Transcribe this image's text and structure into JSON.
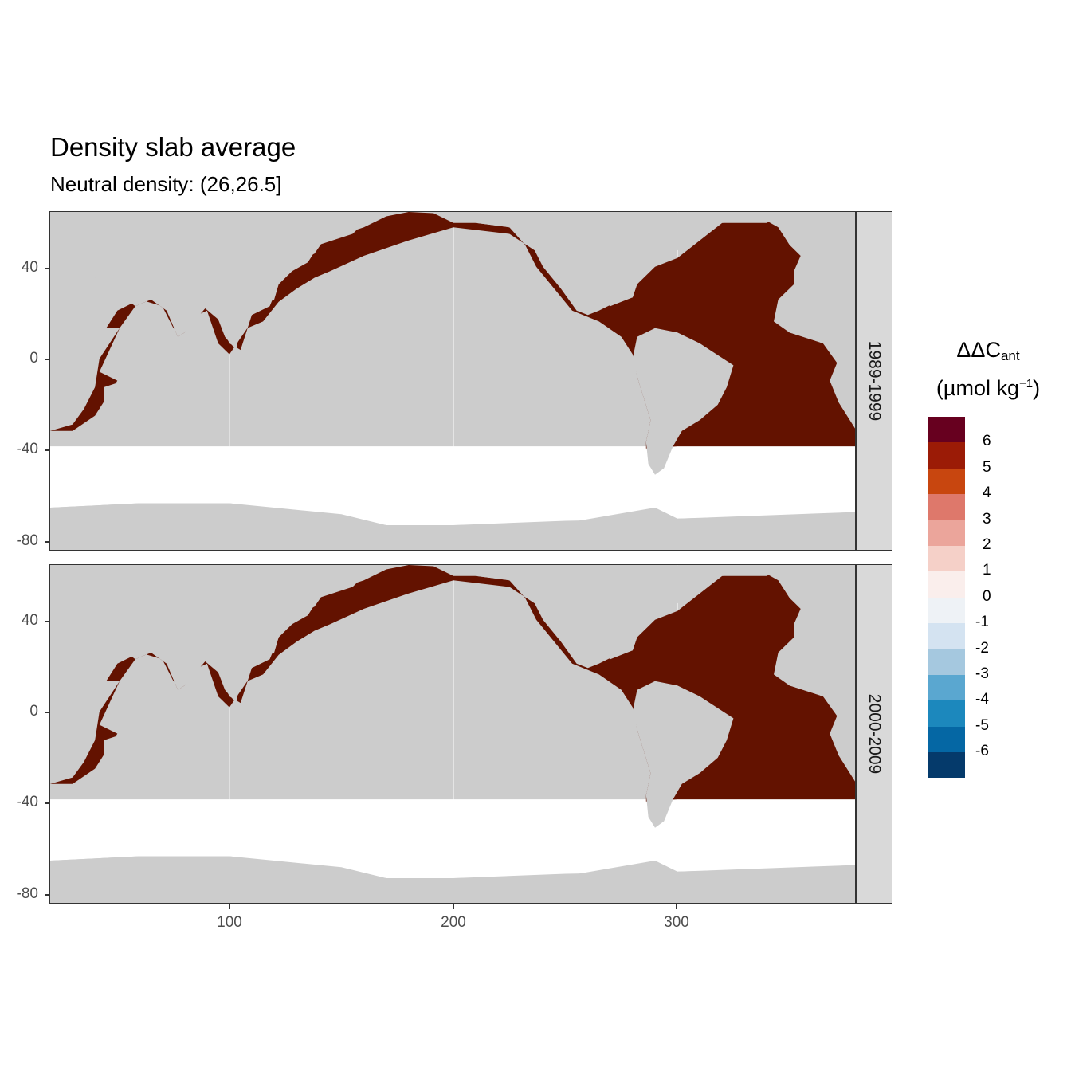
{
  "title": "Density slab average",
  "subtitle": "Neutral density: (26,26.5]",
  "panels": [
    {
      "label": "1989-1999"
    },
    {
      "label": "2000-2009"
    }
  ],
  "axes": {
    "y_ticks": [
      "40",
      "0",
      "-40",
      "-80"
    ],
    "x_ticks": [
      "100",
      "200",
      "300"
    ],
    "xlim": [
      20,
      380
    ],
    "ylim": [
      -90,
      65
    ]
  },
  "legend": {
    "title_main": "ΔΔC",
    "title_sub": "ant",
    "unit_main": "(µmol kg",
    "unit_sup": "−1",
    "unit_close": ")",
    "labels": [
      "6",
      "5",
      "4",
      "3",
      "2",
      "1",
      "0",
      "-1",
      "-2",
      "-3",
      "-4",
      "-5",
      "-6"
    ],
    "colors": [
      "#67001f",
      "#9b1b06",
      "#c8460f",
      "#de786b",
      "#eba59b",
      "#f5d0c8",
      "#faeeec",
      "#eef2f6",
      "#d4e3f1",
      "#a5c8df",
      "#5aa7d0",
      "#1c88bd",
      "#0567a4",
      "#053a6b"
    ]
  },
  "colors": {
    "ocean_value": "#631200",
    "land": "#cccccc",
    "no_data": "#ffffff"
  },
  "chart_data": {
    "type": "heatmap",
    "title": "Density slab average",
    "subtitle": "Neutral density: (26,26.5]",
    "x_ticks": [
      100,
      200,
      300
    ],
    "y_ticks": [
      40,
      0,
      -40,
      -80
    ],
    "facets": [
      "1989-1999",
      "2000-2009"
    ],
    "value_description": "ocean cells between about 40S and the northern seas are in the top color class (>6)",
    "legend_breaks": [
      6,
      5,
      4,
      3,
      2,
      1,
      0,
      -1,
      -2,
      -3,
      -4,
      -5,
      -6
    ]
  }
}
